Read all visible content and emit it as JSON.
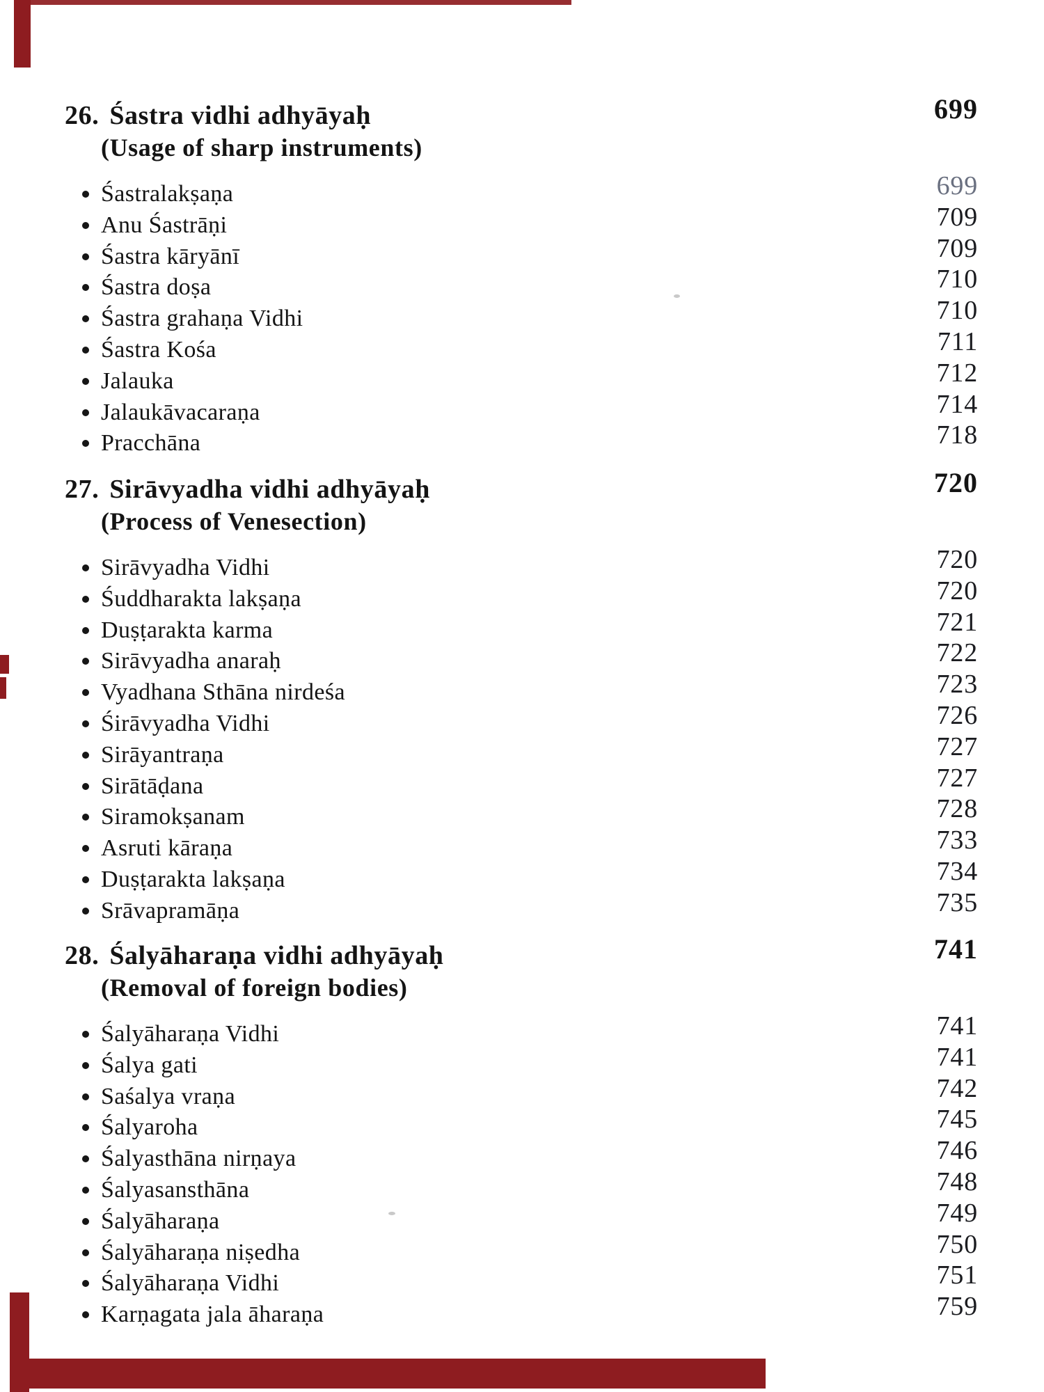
{
  "colors": {
    "accent_red": "#8e1c20",
    "text": "#141414",
    "faded_number": "#6a7080"
  },
  "toc": {
    "chapters": [
      {
        "number": "26.",
        "title": "Śastra vidhi adhyāyaḥ",
        "subtitle": "(Usage of sharp instruments)",
        "page": "699",
        "items": [
          {
            "label": "Śastralakṣaṇa",
            "page": "699"
          },
          {
            "label": "Anu Śastrāṇi",
            "page": "709"
          },
          {
            "label": "Śastra kāryānī",
            "page": "709"
          },
          {
            "label": "Śastra doṣa",
            "page": "710"
          },
          {
            "label": "Śastra grahaṇa Vidhi",
            "page": "710"
          },
          {
            "label": "Śastra Kośa",
            "page": "711"
          },
          {
            "label": "Jalauka",
            "page": "712"
          },
          {
            "label": "Jalaukāvacaraṇa",
            "page": "714"
          },
          {
            "label": "Pracchāna",
            "page": "718"
          }
        ]
      },
      {
        "number": "27.",
        "title": "Sirāvyadha vidhi adhyāyaḥ",
        "subtitle": "(Process of Venesection)",
        "page": "720",
        "items": [
          {
            "label": "Sirāvyadha Vidhi",
            "page": "720"
          },
          {
            "label": "Śuddharakta lakṣaṇa",
            "page": "720"
          },
          {
            "label": "Duṣṭarakta karma",
            "page": "721"
          },
          {
            "label": "Sirāvyadha anaraḥ",
            "page": "722"
          },
          {
            "label": "Vyadhana Sthāna nirdeśa",
            "page": "723"
          },
          {
            "label": "Śirāvyadha Vidhi",
            "page": "726"
          },
          {
            "label": "Sirāyantraṇa",
            "page": "727"
          },
          {
            "label": "Sirātāḍana",
            "page": "727"
          },
          {
            "label": "Siramokṣanam",
            "page": "728"
          },
          {
            "label": "Asruti kāraṇa",
            "page": "733"
          },
          {
            "label": "Duṣṭarakta lakṣaṇa",
            "page": "734"
          },
          {
            "label": "Srāvapramāṇa",
            "page": "735"
          }
        ]
      },
      {
        "number": "28.",
        "title": "Śalyāharaṇa vidhi adhyāyaḥ",
        "subtitle": "(Removal of foreign bodies)",
        "page": "741",
        "items": [
          {
            "label": "Śalyāharaṇa Vidhi",
            "page": "741"
          },
          {
            "label": "Śalya gati",
            "page": "741"
          },
          {
            "label": "Saśalya vraṇa",
            "page": "742"
          },
          {
            "label": "Śalyaroha",
            "page": "745"
          },
          {
            "label": "Śalyasthāna nirṇaya",
            "page": "746"
          },
          {
            "label": "Śalyasansthāna",
            "page": "748"
          },
          {
            "label": "Śalyāharaṇa",
            "page": "749"
          },
          {
            "label": "Śalyāharaṇa niṣedha",
            "page": "750"
          },
          {
            "label": "Śalyāharaṇa Vidhi",
            "page": "751"
          },
          {
            "label": "Karṇagata jala āharaṇa",
            "page": "759"
          }
        ]
      }
    ]
  }
}
